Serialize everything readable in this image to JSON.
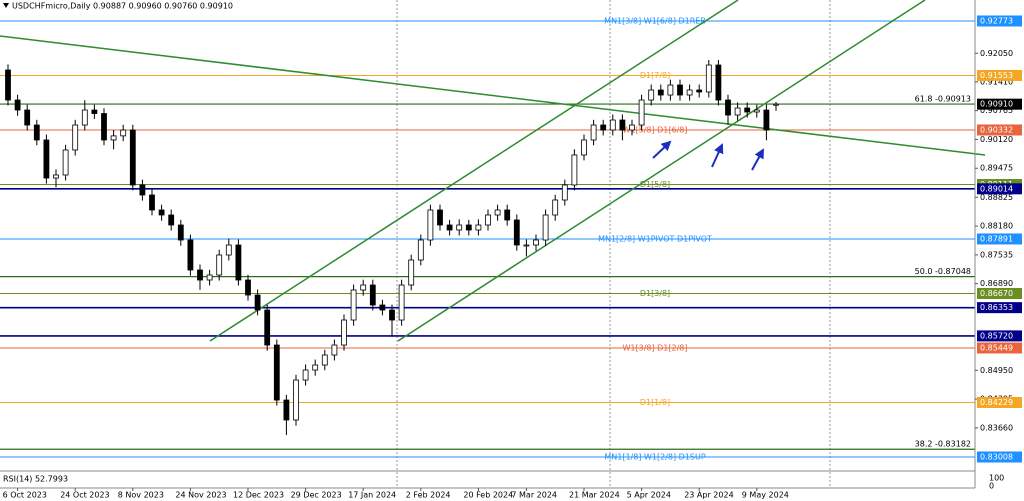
{
  "chart_data": {
    "type": "candlestick",
    "title": "USDCHFmicro,Daily 0.90887 0.90960 0.90760 0.90910",
    "ylim": [
      0.82717,
      0.93243
    ],
    "yticks": [
      {
        "value": 0.9205,
        "label": "0.92050"
      },
      {
        "value": 0.9141,
        "label": "0.91410"
      },
      0.90765,
      {
        "value": 0.9012,
        "label": "0.90120"
      },
      0.89475,
      0.88825,
      {
        "value": 0.8818,
        "label": "0.88180"
      },
      0.87535,
      {
        "value": 0.8689,
        "label": "0.86890"
      },
      {
        "value": 0.8495,
        "label": "0.84950"
      },
      0.84305,
      {
        "value": 0.8366,
        "label": "0.83660"
      }
    ],
    "x": [
      null,
      "6 Oct 2023",
      null,
      null,
      null,
      null,
      null,
      "24 Oct 2023",
      null,
      null,
      null,
      null,
      null,
      "8 Nov 2023",
      null,
      null,
      null,
      null,
      null,
      "24 Nov 2023",
      null,
      null,
      null,
      null,
      null,
      "12 Dec 2023",
      null,
      null,
      null,
      null,
      null,
      "29 Dec 2023",
      null,
      null,
      null,
      null,
      null,
      "17 Jan 2024",
      null,
      null,
      null,
      null,
      null,
      "2 Feb 2024",
      null,
      null,
      null,
      null,
      null,
      "20 Feb 2024",
      null,
      null,
      null,
      null,
      "7 Mar 2024",
      null,
      null,
      null,
      null,
      null,
      "21 Mar 2024",
      null,
      null,
      null,
      null,
      null,
      "5 Apr 2024",
      null,
      null,
      null,
      null,
      null,
      "23 Apr 2024",
      null,
      null,
      null,
      null,
      null,
      "9 May 2024",
      null,
      null
    ],
    "open": [
      0.91675,
      0.91003,
      0.90779,
      0.90443,
      0.90108,
      0.89256,
      0.89324,
      0.89884,
      0.90443,
      0.90779,
      0.907,
      0.90108,
      0.902,
      0.90331,
      0.891,
      0.88876,
      0.8854,
      0.88428,
      0.88204,
      0.87868,
      0.87196,
      0.86972,
      0.87084,
      0.87532,
      0.87756,
      0.86972,
      0.86636,
      0.863,
      0.85516,
      0.84284,
      0.83837,
      0.84732,
      0.84956,
      0.85068,
      0.85292,
      0.85516,
      0.86076,
      0.86748,
      0.8686,
      0.86412,
      0.863,
      0.86076,
      0.8686,
      0.8742,
      0.87868,
      0.8854,
      0.88204,
      0.88092,
      0.88204,
      0.88092,
      0.88204,
      0.88428,
      0.8854,
      0.88316,
      0.87756,
      0.87756,
      0.87868,
      0.88428,
      0.88764,
      0.891,
      0.89772,
      0.90108,
      0.90443,
      0.90331,
      0.90555,
      0.90331,
      0.90443,
      0.91003,
      0.91227,
      0.91115,
      0.91339,
      0.91115,
      0.91227,
      0.91183,
      0.91787,
      0.91003,
      0.90667,
      0.90824,
      0.90735,
      0.90779,
      0.90887
    ],
    "high": [
      0.918,
      0.9112,
      0.909,
      0.9056,
      0.9023,
      0.8945,
      0.9,
      0.9056,
      0.91,
      0.909,
      0.9082,
      0.9033,
      0.9045,
      0.9045,
      0.8922,
      0.89,
      0.8866,
      0.8855,
      0.8832,
      0.8799,
      0.8732,
      0.872,
      0.8765,
      0.879,
      0.8788,
      0.8709,
      0.8676,
      0.8642,
      0.8564,
      0.844,
      0.8485,
      0.8508,
      0.8519,
      0.8541,
      0.8564,
      0.862,
      0.8687,
      0.8698,
      0.8698,
      0.8653,
      0.8642,
      0.8698,
      0.8754,
      0.8799,
      0.8866,
      0.8866,
      0.8832,
      0.8833,
      0.8832,
      0.8833,
      0.8855,
      0.8866,
      0.8866,
      0.8844,
      0.8788,
      0.8799,
      0.8855,
      0.8888,
      0.8922,
      0.899,
      0.9023,
      0.9056,
      0.9056,
      0.9068,
      0.9068,
      0.9056,
      0.9112,
      0.9135,
      0.9135,
      0.9146,
      0.9146,
      0.9135,
      0.9135,
      0.919,
      0.919,
      0.9112,
      0.9095,
      0.9095,
      0.909,
      0.909,
      0.9096
    ],
    "low": [
      0.9088,
      0.9065,
      0.9032,
      0.8999,
      0.8913,
      0.8905,
      0.892,
      0.8976,
      0.9032,
      0.9058,
      0.8999,
      0.899,
      0.9008,
      0.8898,
      0.8875,
      0.8842,
      0.883,
      0.8808,
      0.8774,
      0.8707,
      0.8675,
      0.8685,
      0.8696,
      0.8741,
      0.8685,
      0.8651,
      0.8618,
      0.8539,
      0.8416,
      0.835,
      0.8371,
      0.8461,
      0.8483,
      0.8495,
      0.8517,
      0.8539,
      0.8595,
      0.8662,
      0.8629,
      0.8618,
      0.857,
      0.8595,
      0.8674,
      0.873,
      0.8774,
      0.8808,
      0.8797,
      0.8797,
      0.8797,
      0.8797,
      0.8808,
      0.883,
      0.8819,
      0.8763,
      0.875,
      0.8763,
      0.8774,
      0.883,
      0.8864,
      0.8898,
      0.8965,
      0.8999,
      0.9021,
      0.9021,
      0.901,
      0.9021,
      0.9032,
      0.9088,
      0.9099,
      0.9099,
      0.9099,
      0.9099,
      0.9106,
      0.9106,
      0.9088,
      0.9045,
      0.9054,
      0.9061,
      0.9061,
      0.901,
      0.9076
    ],
    "close": [
      0.91003,
      0.90779,
      0.90443,
      0.90108,
      0.89256,
      0.89324,
      0.89884,
      0.90443,
      0.90779,
      0.907,
      0.90108,
      0.902,
      0.90331,
      0.891,
      0.88876,
      0.8854,
      0.88428,
      0.88204,
      0.87868,
      0.87196,
      0.86972,
      0.87084,
      0.87532,
      0.87756,
      0.86972,
      0.86636,
      0.863,
      0.85516,
      0.84284,
      0.83837,
      0.84732,
      0.84956,
      0.85068,
      0.85292,
      0.85516,
      0.86076,
      0.86748,
      0.8686,
      0.86412,
      0.863,
      0.86076,
      0.8686,
      0.8742,
      0.87868,
      0.8854,
      0.88204,
      0.88092,
      0.88204,
      0.88092,
      0.88204,
      0.88428,
      0.8854,
      0.88316,
      0.87756,
      0.87756,
      0.87868,
      0.88428,
      0.88764,
      0.891,
      0.89772,
      0.90108,
      0.90443,
      0.90331,
      0.90555,
      0.90331,
      0.90443,
      0.91003,
      0.91227,
      0.91115,
      0.91339,
      0.91115,
      0.91227,
      0.91183,
      0.91787,
      0.91003,
      0.90667,
      0.90824,
      0.90735,
      0.90779,
      0.90331,
      0.9091
    ],
    "levels": [
      {
        "price": 0.92773,
        "color": "#1e90ff",
        "text": "MN1[3/8] W1[6/8] D1REB"
      },
      {
        "price": 0.91553,
        "color": "#f5a623",
        "text": "D1[7/8]"
      },
      {
        "price": 0.90332,
        "color": "#e8643c",
        "text": "W1[5/8] D1[6/8]"
      },
      {
        "price": 0.89111,
        "color": "#6b8e23",
        "text": "D1[5/8]"
      },
      {
        "price": 0.89014,
        "color": "#00008b"
      },
      {
        "price": 0.87891,
        "color": "#1e90ff",
        "text": "MN1[2/8] W1PIVOT D1PIVOT"
      },
      {
        "price": {
          "value": 0.8667,
          "label": "0.86670"
        },
        "color": "#6b8e23",
        "text": "D1[3/8]"
      },
      {
        "price": 0.86353,
        "color": "#00008b"
      },
      {
        "price": {
          "value": 0.8572,
          "label": "0.85720"
        },
        "color": "#00008b"
      },
      {
        "price": 0.85449,
        "color": "#e8643c",
        "text": "W1[3/8] D1[2/8]"
      },
      {
        "price": 0.84229,
        "color": "#f5a623",
        "text": "D1[1/8]"
      },
      {
        "price": 0.83008,
        "color": "#1e90ff",
        "text": "MN1[1/8] W1[2/8] D1SUP"
      }
    ],
    "fib_levels": [
      {
        "price": 0.90913,
        "color": "#2e6b1e",
        "text": "61.8 -0.90913"
      },
      {
        "price": 0.87048,
        "color": "#2e6b1e",
        "text": "50.0 -0.87048"
      },
      {
        "price": 0.83182,
        "color": "#2e6b1e",
        "text": "38.2 -0.83182"
      }
    ],
    "last_price": {
      "value": 0.9091,
      "label": "0.90910"
    },
    "rsi": {
      "label": "RSI(14) 52.7993",
      "ylim": [
        0,
        100
      ],
      "yticks": [
        0,
        100
      ]
    }
  }
}
